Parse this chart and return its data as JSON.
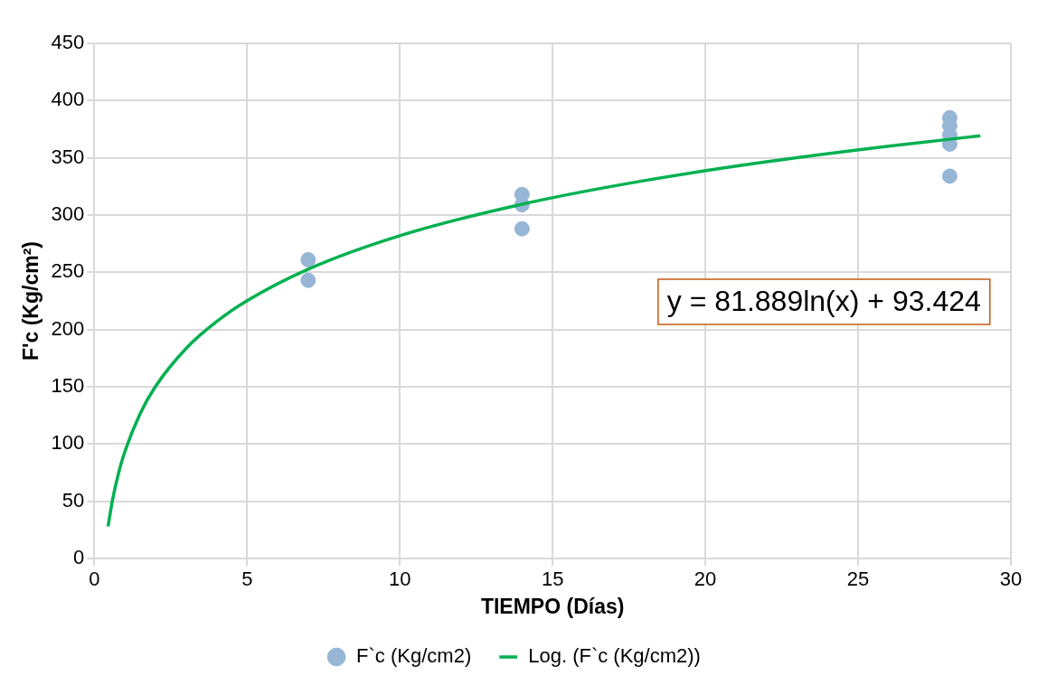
{
  "chart_data": {
    "type": "scatter",
    "xlabel": "TIEMPO (Días)",
    "ylabel": "F'c (Kg/cm²)",
    "xlim": [
      0,
      30
    ],
    "xticks": [
      0,
      5,
      10,
      15,
      20,
      25,
      30
    ],
    "ylim": [
      0,
      450
    ],
    "yticks": [
      0,
      50,
      100,
      150,
      200,
      250,
      300,
      350,
      400,
      450
    ],
    "grid": true,
    "legend": "bottom",
    "annotations": [
      "y = 81.889ln(x) + 93.424"
    ],
    "series": [
      {
        "name": "F`c (Kg/cm2)",
        "marker": "circle",
        "color": "#97b6d6",
        "x": [
          7,
          7,
          14,
          14,
          14,
          28,
          28,
          28,
          28,
          28
        ],
        "values": [
          261,
          243,
          318,
          309,
          288,
          385,
          378,
          370,
          362,
          334
        ]
      },
      {
        "name": "Log. (F`c (Kg/cm2))",
        "type": "line",
        "marker": "none",
        "color": "#00b050",
        "x": [
          0.45,
          0.6,
          0.8,
          1,
          1.5,
          2,
          3,
          4,
          5,
          7,
          10,
          14,
          18,
          22,
          26,
          29
        ],
        "values": [
          28,
          51.6,
          75.2,
          93.4,
          126.6,
          150.2,
          183.4,
          206.9,
          225.2,
          252.8,
          282,
          309.5,
          330.1,
          346.5,
          360.2,
          369.2
        ]
      }
    ]
  }
}
